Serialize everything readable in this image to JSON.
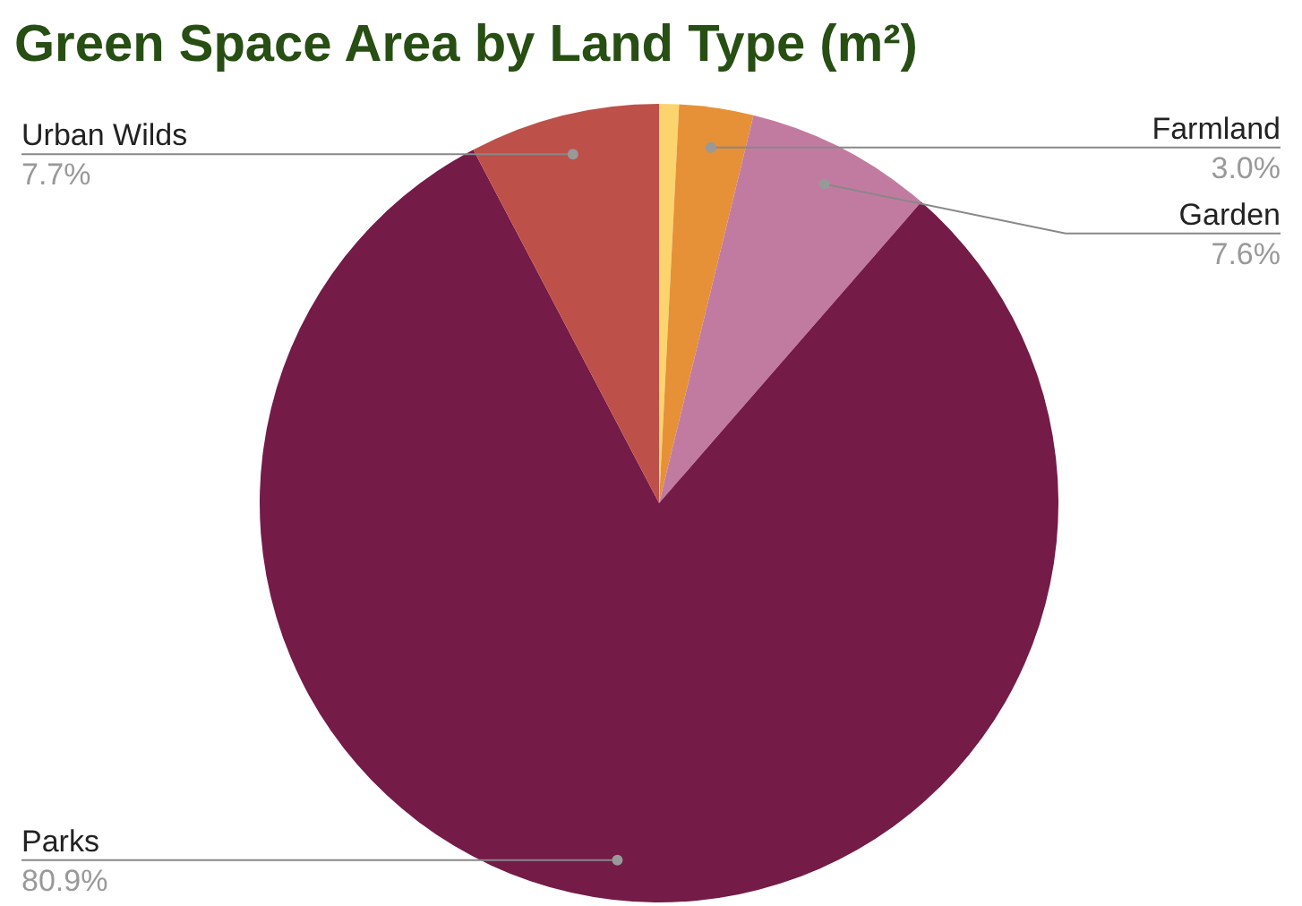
{
  "chart_data": {
    "type": "pie",
    "title": "Green Space Area by Land Type (m²)",
    "categories": [
      null,
      "Farmland",
      "Garden",
      "Parks",
      "Urban Wilds"
    ],
    "values": [
      0.8,
      3.0,
      7.6,
      80.9,
      7.7
    ],
    "colors": [
      "#fbd46d",
      "#e69138",
      "#c27ba0",
      "#741b47",
      "#be504a"
    ],
    "value_labels": [
      null,
      "3.0%",
      "7.6%",
      "80.9%",
      "7.7%"
    ],
    "legend": false
  }
}
